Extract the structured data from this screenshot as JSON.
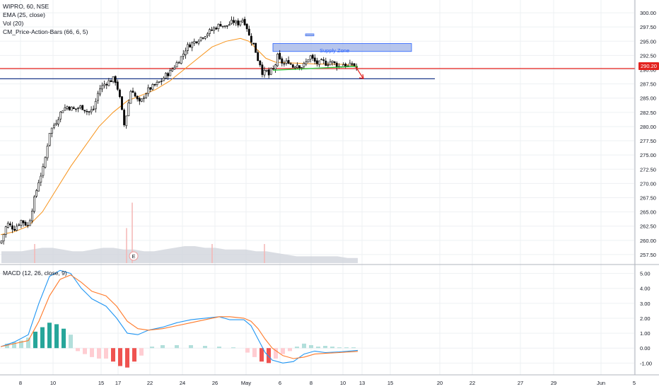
{
  "legend": {
    "title": "WIPRO, 60, NSE",
    "ema": "EMA (25, close)",
    "vol": "Vol (20)",
    "cm": "CM_Price-Action-Bars (66, 6, 5)",
    "macd": "MACD (12, 26, close, 9)"
  },
  "price_tag": "290.20",
  "annotations": {
    "supply_zone": "Supply Zone",
    "earnings_marker": "E"
  },
  "colors": {
    "up_candle": "#ffffff",
    "down_candle": "#000000",
    "ema": "#f7931a",
    "resistance": "#e3221e",
    "support": "#1e3a8a",
    "trendline": "#2ecc40",
    "zone_fill": "#9db2e6",
    "macd_line": "#2196f3",
    "signal_line": "#ff7a2a",
    "hist_pos_strong": "#26a69a",
    "hist_pos_weak": "#b2dfdb",
    "hist_neg_strong": "#ef5350",
    "hist_neg_weak": "#ffcdd2",
    "grid": "#eef0f3"
  },
  "chart_data": [
    {
      "type": "candlestick",
      "title": "WIPRO, 60, NSE",
      "ylim": [
        256.0,
        301.5
      ],
      "y_ticks": [
        "300.00",
        "297.50",
        "295.00",
        "292.50",
        "290.00",
        "287.50",
        "285.00",
        "282.50",
        "280.00",
        "277.50",
        "275.00",
        "272.50",
        "270.00",
        "267.50",
        "265.00",
        "262.50",
        "260.00",
        "257.50"
      ],
      "x_ticks": [
        "8",
        "10",
        "15",
        "17",
        "22",
        "24",
        "26",
        "May",
        "6",
        "8",
        "10",
        "13",
        "15",
        "20",
        "22",
        "27",
        "29",
        "Jun",
        "5"
      ],
      "price_path": [
        [
          1,
          259.5
        ],
        [
          10,
          263
        ],
        [
          20,
          262
        ],
        [
          30,
          263.5
        ],
        [
          40,
          262.5
        ],
        [
          48,
          267
        ],
        [
          55,
          270.5
        ],
        [
          62,
          273
        ],
        [
          70,
          279
        ],
        [
          80,
          281
        ],
        [
          88,
          283
        ],
        [
          95,
          283.5
        ],
        [
          105,
          283
        ],
        [
          115,
          283.5
        ],
        [
          125,
          282.5
        ],
        [
          132,
          283
        ],
        [
          140,
          286.5
        ],
        [
          148,
          287.5
        ],
        [
          155,
          288
        ],
        [
          162,
          288.5
        ],
        [
          168,
          286
        ],
        [
          172,
          283
        ],
        [
          176,
          280
        ],
        [
          180,
          283
        ],
        [
          186,
          287
        ],
        [
          192,
          285
        ],
        [
          198,
          284
        ],
        [
          204,
          285.5
        ],
        [
          210,
          286.5
        ],
        [
          216,
          287
        ],
        [
          222,
          287.5
        ],
        [
          228,
          288
        ],
        [
          234,
          289
        ],
        [
          240,
          289.5
        ],
        [
          246,
          290.5
        ],
        [
          252,
          291.5
        ],
        [
          258,
          292.5
        ],
        [
          264,
          294
        ],
        [
          270,
          294.5
        ],
        [
          276,
          295
        ],
        [
          282,
          295.5
        ],
        [
          288,
          296
        ],
        [
          294,
          296.5
        ],
        [
          300,
          297
        ],
        [
          306,
          297.5
        ],
        [
          312,
          298
        ],
        [
          318,
          297.5
        ],
        [
          324,
          298
        ],
        [
          330,
          298.5
        ],
        [
          336,
          298
        ],
        [
          342,
          299
        ],
        [
          348,
          298
        ],
        [
          352,
          296
        ],
        [
          356,
          295
        ],
        [
          360,
          294
        ],
        [
          364,
          292
        ],
        [
          368,
          291
        ],
        [
          372,
          289
        ],
        [
          376,
          290
        ],
        [
          380,
          289
        ],
        [
          384,
          290
        ],
        [
          388,
          290
        ],
        [
          392,
          292.5
        ],
        [
          396,
          291.5
        ],
        [
          402,
          291
        ],
        [
          408,
          291.5
        ],
        [
          414,
          290.5
        ],
        [
          420,
          291
        ],
        [
          426,
          290.5
        ],
        [
          432,
          291
        ],
        [
          438,
          292.5
        ],
        [
          444,
          291.5
        ],
        [
          450,
          291
        ],
        [
          456,
          291.5
        ],
        [
          462,
          291
        ],
        [
          468,
          291.5
        ],
        [
          474,
          291
        ],
        [
          480,
          290.5
        ],
        [
          486,
          291
        ],
        [
          492,
          290.5
        ],
        [
          498,
          291
        ],
        [
          502,
          290.5
        ],
        [
          506,
          290.2
        ]
      ],
      "ema_path": [
        [
          1,
          261
        ],
        [
          20,
          261.5
        ],
        [
          40,
          262.5
        ],
        [
          60,
          265
        ],
        [
          80,
          269
        ],
        [
          100,
          273
        ],
        [
          120,
          276.5
        ],
        [
          140,
          280
        ],
        [
          160,
          282.5
        ],
        [
          180,
          284.5
        ],
        [
          200,
          285.5
        ],
        [
          220,
          286.5
        ],
        [
          240,
          288
        ],
        [
          260,
          290
        ],
        [
          280,
          292
        ],
        [
          300,
          294
        ],
        [
          320,
          295
        ],
        [
          340,
          295.5
        ],
        [
          352,
          295
        ],
        [
          364,
          293.5
        ],
        [
          376,
          292
        ],
        [
          390,
          291.3
        ],
        [
          410,
          291.2
        ],
        [
          430,
          291.1
        ],
        [
          450,
          291
        ],
        [
          470,
          291
        ],
        [
          490,
          290.9
        ],
        [
          506,
          290.6
        ]
      ],
      "resistance_level": 290.2,
      "support_level": 288.4,
      "supply_zone": {
        "x_start": "May 6",
        "x_end": "May 16",
        "y_low": 293.2,
        "y_high": 294.2
      },
      "trendline": [
        [
          386,
          289.9
        ],
        [
          506,
          290.6
        ]
      ]
    },
    {
      "type": "volume",
      "title": "Vol (20)",
      "values": [
        0.7,
        0.7,
        0.7,
        0.8,
        0.9,
        0.9,
        0.8,
        0.7,
        0.7,
        0.8,
        0.9,
        0.9,
        0.8,
        0.8,
        0.7,
        0.7,
        0.8,
        0.9,
        1,
        1,
        0.9,
        0.9,
        0.8,
        0.8,
        0.8,
        0.7,
        0.7,
        0.6,
        0.5,
        0.4,
        0.4,
        0.4,
        0.4,
        0.4,
        0.3,
        0.3
      ]
    },
    {
      "type": "line",
      "title": "MACD (12, 26, close, 9)",
      "ylim": [
        -1.6,
        5.5
      ],
      "y_ticks": [
        "5.00",
        "4.00",
        "3.00",
        "2.00",
        "1.00",
        "0.00",
        "-1.00"
      ],
      "series": [
        {
          "name": "MACD",
          "points": [
            [
              1,
              0.1
            ],
            [
              20,
              0.4
            ],
            [
              40,
              0.9
            ],
            [
              55,
              3
            ],
            [
              70,
              4.8
            ],
            [
              85,
              5.2
            ],
            [
              100,
              5
            ],
            [
              115,
              4
            ],
            [
              130,
              3.3
            ],
            [
              150,
              2.8
            ],
            [
              165,
              2
            ],
            [
              180,
              1
            ],
            [
              195,
              0.9
            ],
            [
              210,
              1.2
            ],
            [
              230,
              1.4
            ],
            [
              250,
              1.7
            ],
            [
              270,
              1.9
            ],
            [
              290,
              2
            ],
            [
              310,
              2.1
            ],
            [
              325,
              1.9
            ],
            [
              345,
              1.9
            ],
            [
              355,
              1.5
            ],
            [
              365,
              0.6
            ],
            [
              375,
              -0.3
            ],
            [
              385,
              -0.8
            ],
            [
              400,
              -1
            ],
            [
              415,
              -0.9
            ],
            [
              430,
              -0.4
            ],
            [
              445,
              -0.2
            ],
            [
              460,
              -0.3
            ],
            [
              480,
              -0.25
            ],
            [
              506,
              -0.15
            ]
          ]
        },
        {
          "name": "Signal",
          "points": [
            [
              1,
              0.1
            ],
            [
              20,
              0.3
            ],
            [
              40,
              0.5
            ],
            [
              55,
              1.8
            ],
            [
              70,
              3.5
            ],
            [
              85,
              4.6
            ],
            [
              100,
              4.9
            ],
            [
              115,
              4.4
            ],
            [
              130,
              3.8
            ],
            [
              150,
              3.5
            ],
            [
              165,
              2.8
            ],
            [
              180,
              1.8
            ],
            [
              195,
              1.3
            ],
            [
              210,
              1.2
            ],
            [
              230,
              1.3
            ],
            [
              250,
              1.5
            ],
            [
              270,
              1.7
            ],
            [
              290,
              1.9
            ],
            [
              310,
              2.1
            ],
            [
              325,
              2.1
            ],
            [
              345,
              2
            ],
            [
              355,
              1.8
            ],
            [
              365,
              1.3
            ],
            [
              375,
              0.6
            ],
            [
              385,
              0
            ],
            [
              400,
              -0.5
            ],
            [
              415,
              -0.7
            ],
            [
              430,
              -0.6
            ],
            [
              445,
              -0.4
            ],
            [
              460,
              -0.35
            ],
            [
              480,
              -0.3
            ],
            [
              506,
              -0.22
            ]
          ]
        }
      ],
      "histogram": [
        [
          10,
          0.3
        ],
        [
          20,
          0.4
        ],
        [
          30,
          0.5
        ],
        [
          40,
          0.7
        ],
        [
          50,
          1.1
        ],
        [
          60,
          1.4
        ],
        [
          70,
          1.7
        ],
        [
          80,
          1.6
        ],
        [
          90,
          1.3
        ],
        [
          100,
          0.9
        ],
        [
          110,
          -0.2
        ],
        [
          120,
          -0.4
        ],
        [
          130,
          -0.6
        ],
        [
          140,
          -0.7
        ],
        [
          150,
          -0.7
        ],
        [
          160,
          -0.9
        ],
        [
          170,
          -1.2
        ],
        [
          180,
          -1.3
        ],
        [
          190,
          -0.9
        ],
        [
          200,
          -0.5
        ],
        [
          215,
          0.1
        ],
        [
          230,
          0.2
        ],
        [
          250,
          0.2
        ],
        [
          270,
          0.2
        ],
        [
          290,
          0.15
        ],
        [
          310,
          0.1
        ],
        [
          330,
          0.05
        ],
        [
          350,
          -0.3
        ],
        [
          360,
          -0.6
        ],
        [
          370,
          -0.9
        ],
        [
          380,
          -1
        ],
        [
          390,
          -0.7
        ],
        [
          400,
          -0.4
        ],
        [
          410,
          -0.2
        ],
        [
          420,
          0.1
        ],
        [
          430,
          0.3
        ],
        [
          440,
          0.2
        ],
        [
          450,
          0.1
        ],
        [
          460,
          0.15
        ],
        [
          470,
          0.1
        ],
        [
          480,
          0.05
        ],
        [
          490,
          0.05
        ],
        [
          500,
          0.05
        ]
      ]
    }
  ]
}
